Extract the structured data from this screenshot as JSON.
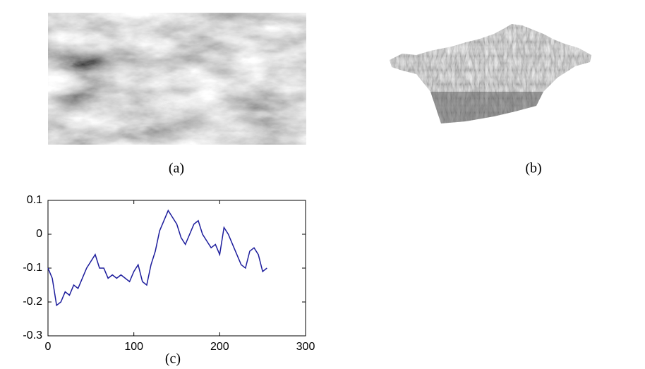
{
  "panels": [
    {
      "caption": "(a)"
    },
    {
      "caption": "(b)"
    }
  ],
  "chart_data": {
    "type": "line",
    "caption": "(c)",
    "x": [
      0,
      5,
      10,
      15,
      20,
      25,
      30,
      35,
      40,
      45,
      50,
      55,
      60,
      65,
      70,
      75,
      80,
      85,
      90,
      95,
      100,
      105,
      110,
      115,
      120,
      125,
      130,
      135,
      140,
      145,
      150,
      155,
      160,
      165,
      170,
      175,
      180,
      185,
      190,
      195,
      200,
      205,
      210,
      215,
      220,
      225,
      230,
      235,
      240,
      245,
      250,
      255
    ],
    "series": [
      {
        "color": "#1c1c9c",
        "values": [
          -0.1,
          -0.13,
          -0.21,
          -0.2,
          -0.17,
          -0.18,
          -0.15,
          -0.16,
          -0.13,
          -0.1,
          -0.08,
          -0.06,
          -0.1,
          -0.1,
          -0.13,
          -0.12,
          -0.13,
          -0.12,
          -0.13,
          -0.14,
          -0.11,
          -0.09,
          -0.14,
          -0.15,
          -0.09,
          -0.05,
          0.01,
          0.04,
          0.07,
          0.05,
          0.03,
          -0.01,
          -0.03,
          0.0,
          0.03,
          0.04,
          0.0,
          -0.02,
          -0.04,
          -0.03,
          -0.06,
          0.02,
          0.0,
          -0.03,
          -0.06,
          -0.09,
          -0.1,
          -0.05,
          -0.04,
          -0.06,
          -0.11,
          -0.1
        ]
      }
    ],
    "xlim": [
      0,
      300
    ],
    "ylim": [
      -0.3,
      0.1
    ],
    "xticks": [
      0,
      100,
      200,
      300
    ],
    "yticks": [
      -0.3,
      -0.2,
      -0.1,
      0,
      0.1
    ]
  }
}
